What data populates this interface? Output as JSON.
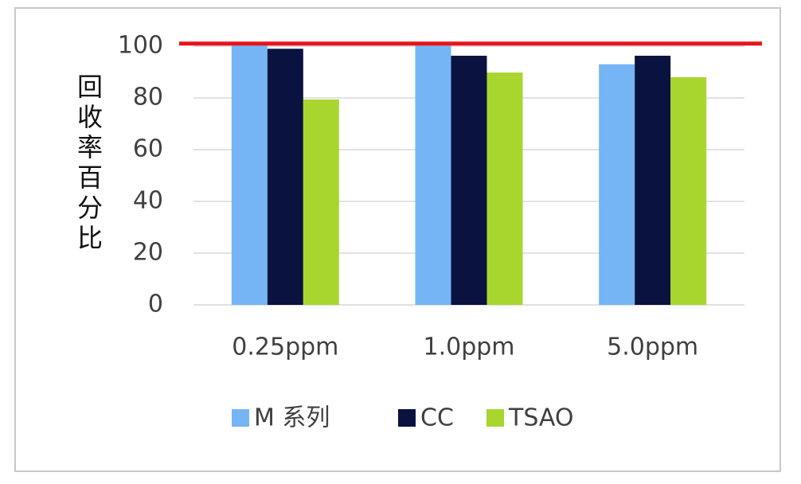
{
  "chart_data": {
    "type": "bar",
    "y_label": "回收率百分比",
    "categories": [
      "0.25ppm",
      "1.0ppm",
      "5.0ppm"
    ],
    "series": [
      {
        "name": "M 系列",
        "color": "#75b5f5",
        "values": [
          101,
          101,
          93
        ]
      },
      {
        "name": "CC",
        "color": "#0a1240",
        "values": [
          99,
          96.3,
          96.3
        ]
      },
      {
        "name": "TSAO",
        "color": "#a8d62f",
        "values": [
          79.4,
          89.8,
          88
        ]
      }
    ],
    "reference_line": {
      "value": 101,
      "color": "#e8141a"
    },
    "ylim": [
      0,
      100
    ],
    "yticks": [
      0,
      20,
      40,
      60,
      80,
      100
    ],
    "grid": true,
    "legend": "bottom"
  }
}
